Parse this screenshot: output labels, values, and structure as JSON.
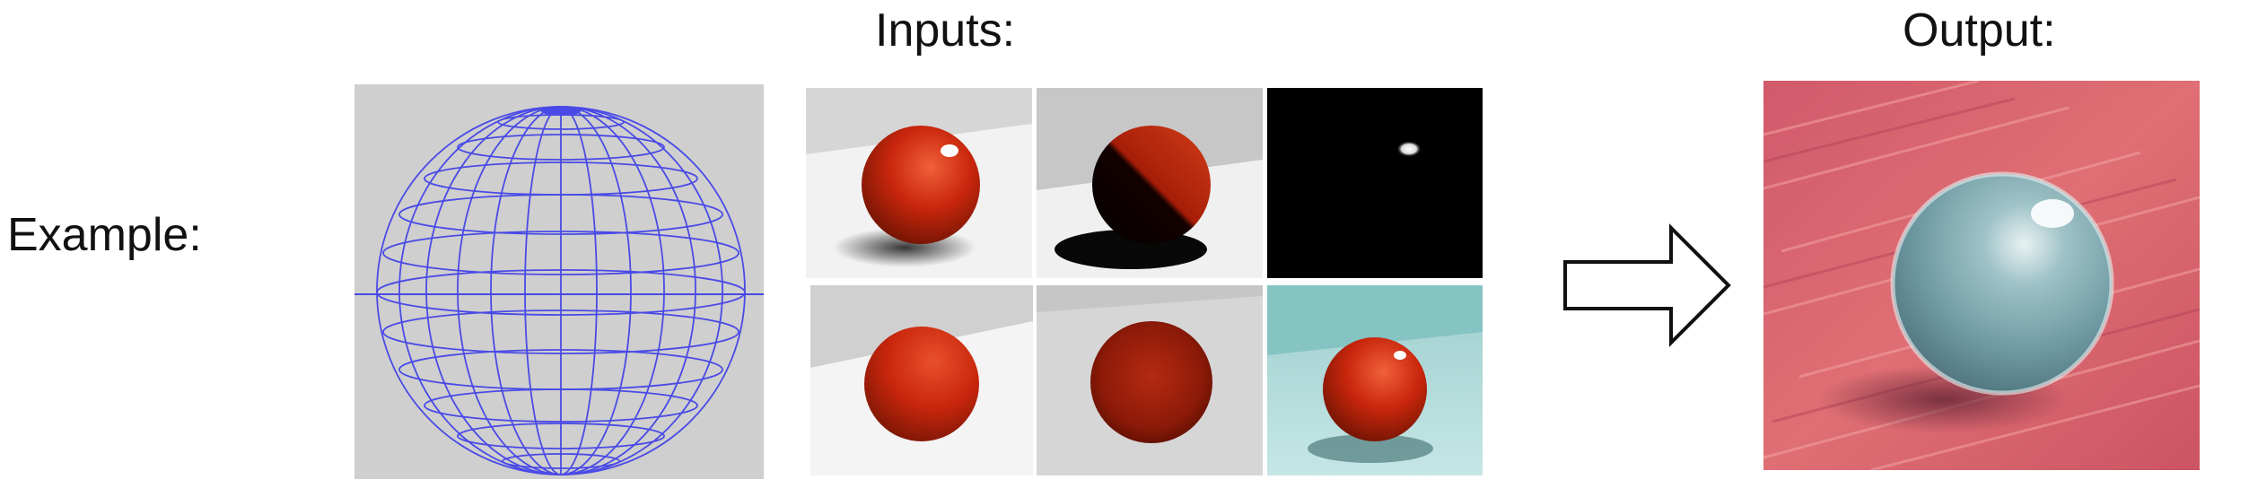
{
  "labels": {
    "example": "Example:",
    "inputs": "Inputs:",
    "output": "Output:"
  },
  "icons": {
    "arrow": "right-arrow-outline-icon"
  },
  "colors": {
    "wire": "#4a4ae6",
    "sphere_red": "#c8260c",
    "output_sphere": "#7fa6ad",
    "output_bg": "#d9616e"
  }
}
